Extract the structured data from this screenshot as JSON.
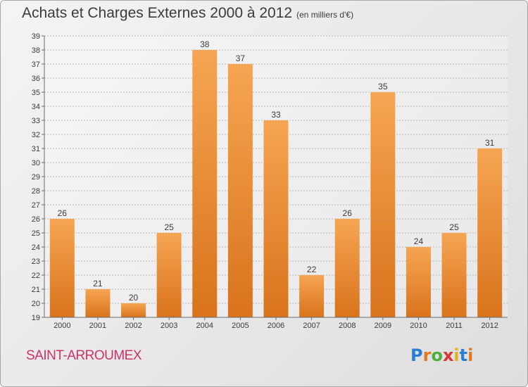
{
  "title": "Achats et Charges Externes 2000 à 2012",
  "subtitle": "(en milliers d'€)",
  "commune": "SAINT-ARROUMEX",
  "logo": {
    "letters": [
      "P",
      "r",
      "o",
      "x",
      "i",
      "t",
      "i"
    ],
    "colors": [
      "#2a7fd4",
      "#e07a1c",
      "#4cae3c",
      "#d93535",
      "#e0b11c",
      "#2a7fd4",
      "#e07a1c"
    ]
  },
  "colors": {
    "bar_light": "#f6a552",
    "bar_dark": "#d9731c",
    "text": "#3b3b3b",
    "commune": "#cc3366"
  },
  "chart_data": {
    "type": "bar",
    "categories": [
      "2000",
      "2001",
      "2002",
      "2003",
      "2004",
      "2005",
      "2006",
      "2007",
      "2008",
      "2009",
      "2010",
      "2011",
      "2012"
    ],
    "values": [
      26,
      21,
      20,
      25,
      38,
      37,
      33,
      22,
      26,
      35,
      24,
      25,
      31
    ],
    "ylim": [
      19,
      39
    ],
    "yticks": [
      19,
      20,
      21,
      22,
      23,
      24,
      25,
      26,
      27,
      28,
      29,
      30,
      31,
      32,
      33,
      34,
      35,
      36,
      37,
      38,
      39
    ],
    "grid": true,
    "title": "Achats et Charges Externes 2000 à 2012",
    "xlabel": "",
    "ylabel": ""
  }
}
